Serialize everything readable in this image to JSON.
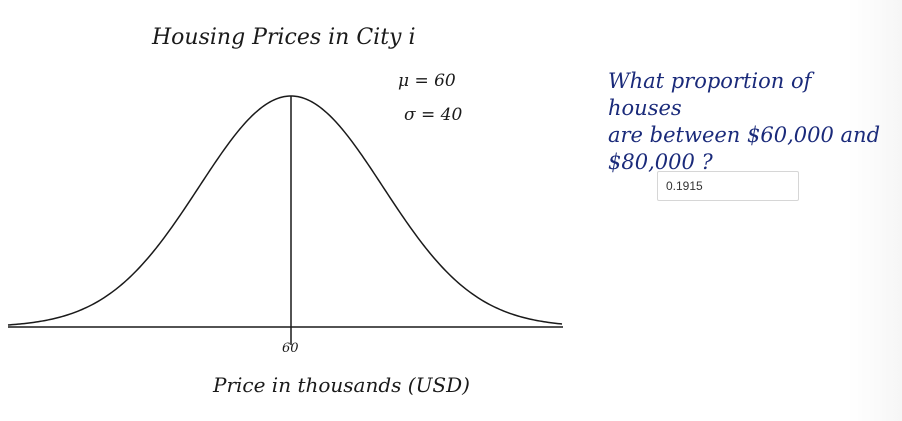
{
  "graph": {
    "title": "Housing Prices in City i",
    "mu_label": "μ = 60",
    "sigma_label": "σ = 40",
    "center_tick": "60",
    "x_label": "Price in thousands (USD)"
  },
  "question": {
    "lines": [
      "What proportion of houses",
      "are between $60,000 and",
      "$80,000 ?"
    ]
  },
  "answer": {
    "value": "0.1915"
  }
}
